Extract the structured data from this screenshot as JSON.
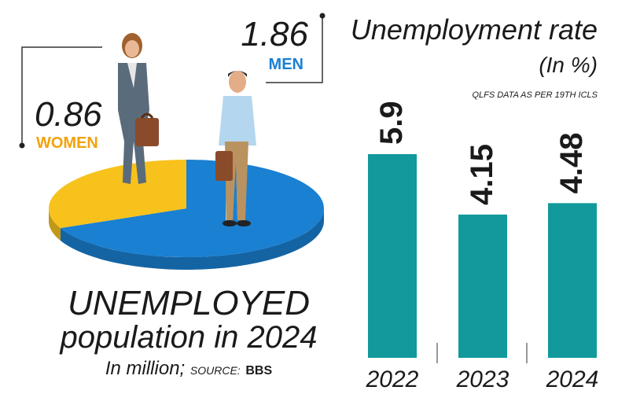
{
  "chart_data": [
    {
      "type": "pie",
      "title": "UNEMPLOYED",
      "subtitle": "population in 2024",
      "unit_note": "In million;",
      "source_label": "SOURCE:",
      "source": "BBS",
      "labels": [
        "MEN",
        "WOMEN"
      ],
      "values": [
        1.86,
        0.86
      ],
      "colors": [
        "#1a80d2",
        "#f8c21c"
      ]
    },
    {
      "type": "bar",
      "title": "Unemployment rate",
      "subtitle": "(In %)",
      "note": "QLFS DATA AS PER 19TH ICLS",
      "categories": [
        "2022",
        "2023",
        "2024"
      ],
      "values": [
        5.9,
        4.15,
        4.48
      ],
      "color": "#12999b"
    }
  ]
}
